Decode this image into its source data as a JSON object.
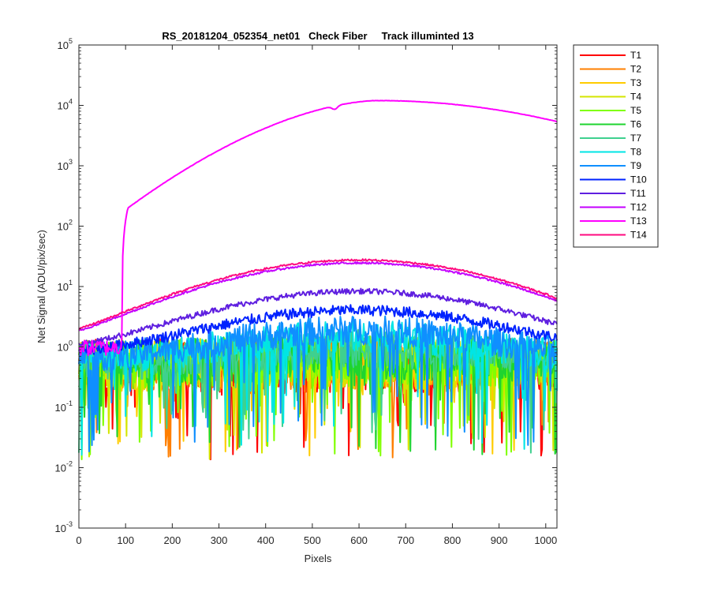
{
  "chart_data": {
    "type": "line",
    "title": "RS_20181204_052354_net01   Check Fiber     Track illuminted 13",
    "xlabel": "Pixels",
    "ylabel": "Net Signal (ADU/pix/sec)",
    "xlim": [
      0,
      1024
    ],
    "ylim_log10": [
      -3,
      5
    ],
    "yscale": "log",
    "xticks": [
      "0",
      "100",
      "200",
      "300",
      "400",
      "500",
      "600",
      "700",
      "800",
      "900",
      "1000"
    ],
    "xtick_values": [
      0,
      100,
      200,
      300,
      400,
      500,
      600,
      700,
      800,
      900,
      1000
    ],
    "ytick_base": "10",
    "ytick_exponents": [
      "-3",
      "-2",
      "-1",
      "0",
      "1",
      "2",
      "3",
      "4",
      "5"
    ],
    "legend_position": "outside-top-right",
    "series": [
      {
        "name": "T1",
        "color": "#ff0000",
        "level": 0.9,
        "spread": 1.0
      },
      {
        "name": "T2",
        "color": "#ff7f00",
        "level": 0.9,
        "spread": 0.9
      },
      {
        "name": "T3",
        "color": "#ffcc00",
        "level": 0.9,
        "spread": 0.9
      },
      {
        "name": "T4",
        "color": "#d4e600",
        "level": 0.9,
        "spread": 0.9
      },
      {
        "name": "T5",
        "color": "#80ff00",
        "level": 1.0,
        "spread": 0.85
      },
      {
        "name": "T6",
        "color": "#1fd42f",
        "level": 1.1,
        "spread": 0.8
      },
      {
        "name": "T7",
        "color": "#3fd08f",
        "level": 1.4,
        "spread": 0.7
      },
      {
        "name": "T8",
        "color": "#00e5e5",
        "level": 2.0,
        "spread": 0.55
      },
      {
        "name": "T9",
        "color": "#0f8fff",
        "level": 2.5,
        "spread": 0.5
      },
      {
        "name": "T10",
        "color": "#0022ff",
        "level": 4.5,
        "spread": 0.3
      },
      {
        "name": "T11",
        "color": "#5f1fe0",
        "level": 8.8,
        "spread": 0.15
      },
      {
        "name": "T12",
        "color": "#c400ff",
        "level": 25,
        "spread": 0.05
      },
      {
        "name": "T13",
        "color": "#ff00ff",
        "level": 12000,
        "spread": 0.01
      },
      {
        "name": "T14",
        "color": "#ff0a7f",
        "level": 28,
        "spread": 0.05
      }
    ]
  }
}
